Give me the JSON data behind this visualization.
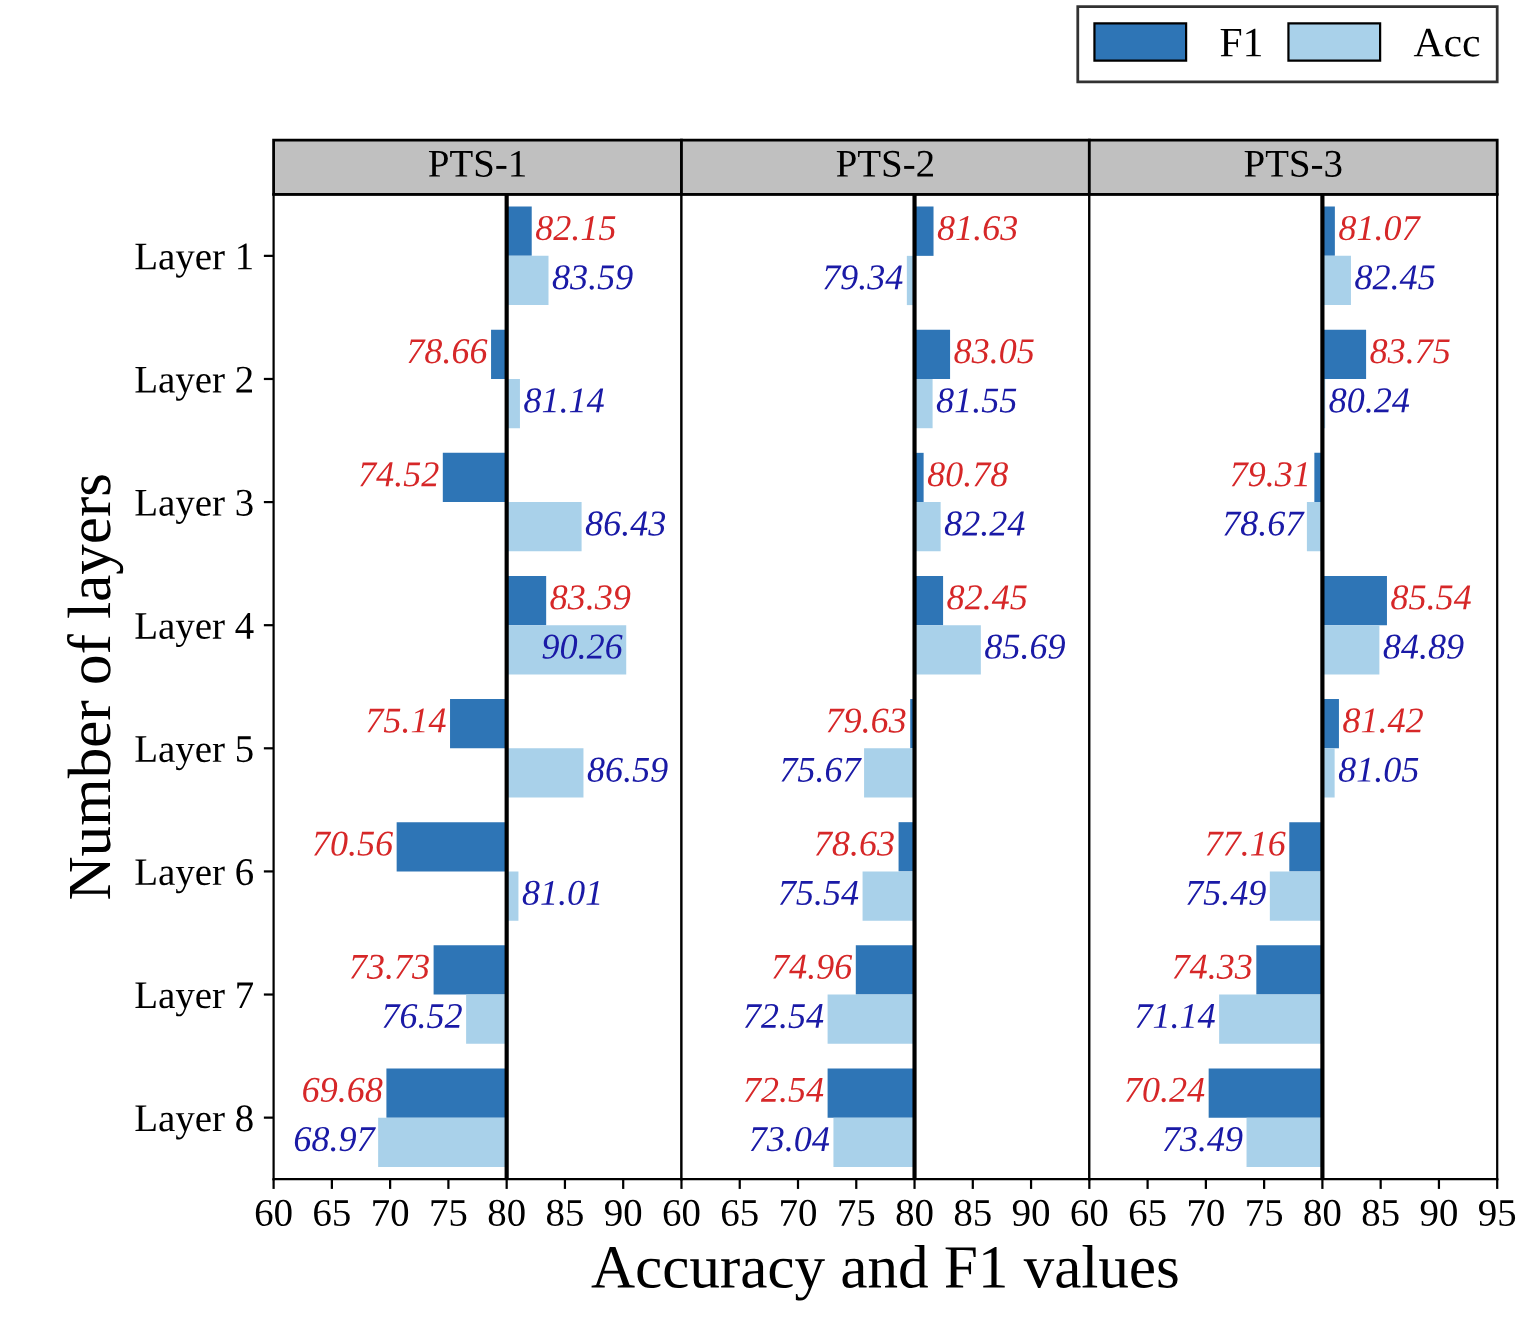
{
  "chart_data": [
    {
      "type": "bar",
      "orientation": "horizontal",
      "title": "PTS-1",
      "legend": "top right",
      "ylabel": "Number of layers",
      "categories": [
        "Layer 1",
        "Layer 2",
        "Layer 3",
        "Layer 4",
        "Layer 5",
        "Layer 6",
        "Layer 7",
        "Layer 8"
      ],
      "xlim": [
        60,
        95
      ],
      "xticks": [
        60,
        65,
        70,
        75,
        80,
        85,
        90
      ],
      "ref_lines": [
        {
          "axis": "x",
          "value": 80,
          "color": "#000000"
        }
      ],
      "series": [
        {
          "name": "F1",
          "color": "#2e75b6",
          "base": [
            80,
            80,
            80,
            80,
            80,
            80,
            80,
            80
          ],
          "values": [
            2.15,
            -1.34,
            -5.48,
            3.39,
            -4.86,
            -9.44,
            -6.27,
            -10.32
          ],
          "value_labels": [
            "82.15",
            "78.66",
            "74.52",
            "83.39",
            "75.14",
            "70.56",
            "73.73",
            "69.68"
          ]
        },
        {
          "name": "Acc",
          "color": "#a9d1ea",
          "base": [
            80,
            80,
            80,
            80,
            80,
            80,
            80,
            80
          ],
          "values": [
            3.59,
            1.14,
            6.43,
            10.26,
            6.59,
            1.01,
            -3.48,
            -11.03
          ],
          "value_labels": [
            "83.59",
            "81.14",
            "86.43",
            "90.26",
            "86.59",
            "81.01",
            "76.52",
            "68.97"
          ]
        }
      ]
    },
    {
      "type": "bar",
      "orientation": "horizontal",
      "title": "PTS-2",
      "xlabel": "Accuracy and F1 values",
      "categories": [
        null,
        null,
        null,
        null,
        null,
        null,
        null,
        null
      ],
      "xlim": [
        60,
        95
      ],
      "xticks": [
        60,
        65,
        70,
        75,
        80,
        85,
        90
      ],
      "tick_labels": "x",
      "ref_lines": [
        {
          "axis": "x",
          "value": 80,
          "color": "#000000"
        }
      ],
      "series": [
        {
          "color": "#2e75b6",
          "base": [
            80,
            80,
            80,
            80,
            80,
            80,
            80,
            80
          ],
          "values": [
            1.63,
            3.05,
            0.78,
            2.45,
            -0.37,
            -1.37,
            -5.04,
            -7.46
          ],
          "value_labels": [
            "81.63",
            "83.05",
            "80.78",
            "82.45",
            "79.63",
            "78.63",
            "74.96",
            "72.54"
          ]
        },
        {
          "color": "#a9d1ea",
          "base": [
            80,
            80,
            80,
            80,
            80,
            80,
            80,
            80
          ],
          "values": [
            -0.66,
            1.55,
            2.24,
            5.69,
            -4.33,
            -4.46,
            -7.46,
            -6.96
          ],
          "value_labels": [
            "79.34",
            "81.55",
            "82.24",
            "85.69",
            "75.67",
            "75.54",
            "72.54",
            "73.04"
          ]
        }
      ]
    },
    {
      "type": "bar",
      "orientation": "horizontal",
      "title": "PTS-3",
      "categories": [
        null,
        null,
        null,
        null,
        null,
        null,
        null,
        null
      ],
      "xlim": [
        60,
        95
      ],
      "xticks": [
        60,
        65,
        70,
        75,
        80,
        85,
        90,
        95
      ],
      "tick_labels": "x",
      "ref_lines": [
        {
          "axis": "x",
          "value": 80,
          "color": "#000000"
        }
      ],
      "series": [
        {
          "color": "#2e75b6",
          "base": [
            80,
            80,
            80,
            80,
            80,
            80,
            80,
            80
          ],
          "values": [
            1.07,
            3.75,
            -0.69,
            5.54,
            1.42,
            -2.84,
            -5.67,
            -9.76
          ],
          "value_labels": [
            "81.07",
            "83.75",
            "79.31",
            "85.54",
            "81.42",
            "77.16",
            "74.33",
            "70.24"
          ]
        },
        {
          "color": "#a9d1ea",
          "base": [
            80,
            80,
            80,
            80,
            80,
            80,
            80,
            80
          ],
          "values": [
            2.45,
            0.24,
            -1.33,
            4.89,
            1.05,
            -4.51,
            -8.86,
            -6.51
          ],
          "value_labels": [
            "82.45",
            "80.24",
            "78.67",
            "84.89",
            "81.05",
            "75.49",
            "71.14",
            "73.49"
          ]
        }
      ]
    }
  ]
}
